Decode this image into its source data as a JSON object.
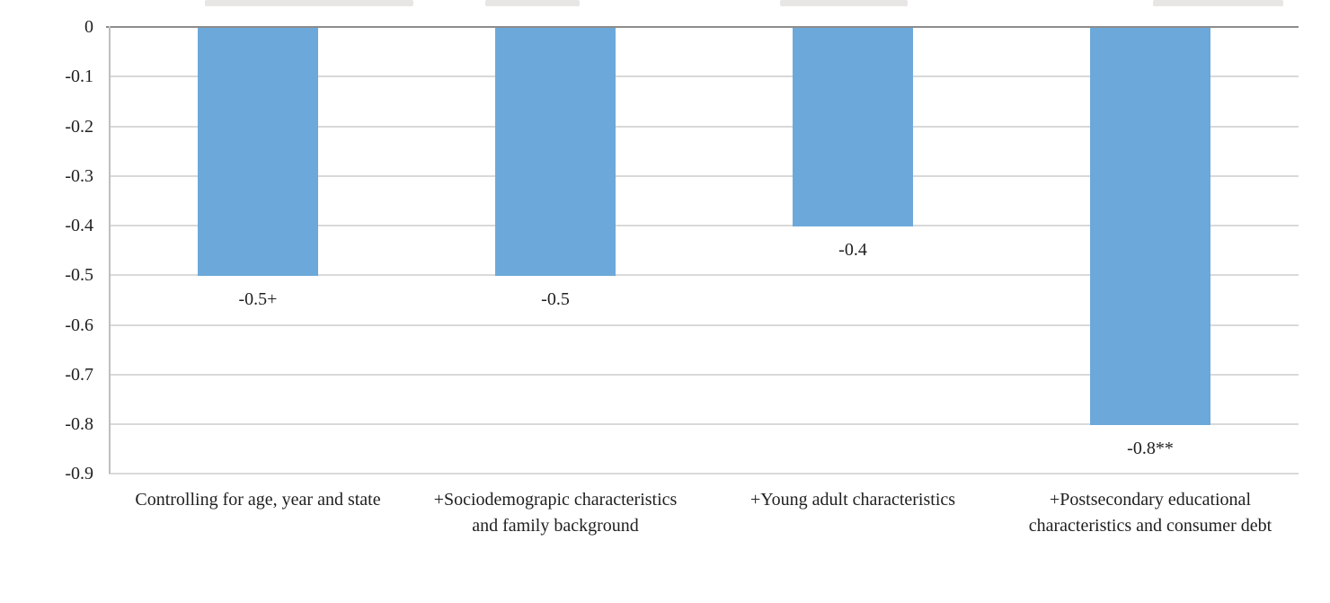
{
  "chart_data": {
    "type": "bar",
    "title": "",
    "xlabel": "",
    "ylabel": "",
    "categories": [
      "Controlling for age, year and state",
      "+Sociodemograpic characteristics and family background",
      "+Young adult characteristics",
      "+Postsecondary educational characteristics and consumer debt"
    ],
    "category_display_labels": [
      "Controlling for age, year and state",
      "+Sociodemograpic characteristics\nand family background",
      "+Young adult characteristics",
      "+Postsecondary educational\ncharacteristics and consumer debt"
    ],
    "values": [
      -0.5,
      -0.5,
      -0.4,
      -0.8
    ],
    "data_labels": [
      "-0.5+",
      "-0.5",
      "-0.4",
      "-0.8**"
    ],
    "yticks": [
      0,
      -0.1,
      -0.2,
      -0.3,
      -0.4,
      -0.5,
      -0.6,
      -0.7,
      -0.8,
      -0.9
    ],
    "ytick_labels": [
      "0",
      "-0.1",
      "-0.2",
      "-0.3",
      "-0.4",
      "-0.5",
      "-0.6",
      "-0.7",
      "-0.8",
      "-0.9"
    ],
    "ylim": [
      -0.9,
      0
    ],
    "grid": true,
    "legend": "none",
    "colors": {
      "bar": "#6CA9DA",
      "gridline": "#D9D9D9",
      "zero_axis_line": "#8C8C8C",
      "y_axis_line": "#BFBFBF",
      "text": "#1F1F1F",
      "background": "#FFFFFF"
    }
  }
}
